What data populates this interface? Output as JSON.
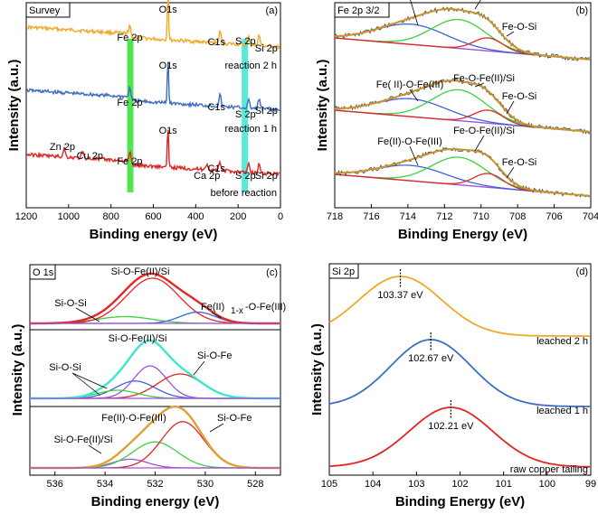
{
  "chart_data": [
    {
      "panel": "a",
      "type": "line",
      "box_label": "Survey",
      "panel_tag": "(a)",
      "xlabel": "Binding energy (eV)",
      "ylabel": "Intensity (a.u.)",
      "xlim": [
        1200,
        0
      ],
      "xticks": [
        1200,
        1000,
        800,
        600,
        400,
        200,
        0
      ],
      "series": [
        {
          "name": "reaction 2 h",
          "color": "#f0a828",
          "peaks": [
            {
              "x": 711,
              "h": 0.9
            },
            {
              "x": 531,
              "h": 3.9
            },
            {
              "x": 285,
              "h": 0.9
            },
            {
              "x": 150,
              "h": 0.6
            },
            {
              "x": 101,
              "h": 0.8
            }
          ]
        },
        {
          "name": "reaction 1 h",
          "color": "#3c6cc4",
          "peaks": [
            {
              "x": 711,
              "h": 1.1
            },
            {
              "x": 531,
              "h": 3.6
            },
            {
              "x": 285,
              "h": 0.9
            },
            {
              "x": 150,
              "h": 0.6
            },
            {
              "x": 101,
              "h": 0.8
            }
          ]
        },
        {
          "name": "before reaction",
          "color": "#e02424",
          "peaks": [
            {
              "x": 1021,
              "h": 0.7
            },
            {
              "x": 934,
              "h": 0.5
            },
            {
              "x": 711,
              "h": 1.0
            },
            {
              "x": 531,
              "h": 3.2
            },
            {
              "x": 347,
              "h": 0.5
            },
            {
              "x": 285,
              "h": 0.6
            },
            {
              "x": 150,
              "h": 0.6
            },
            {
              "x": 101,
              "h": 0.7
            }
          ]
        }
      ],
      "highlight_bands": [
        {
          "x": 711,
          "color": "#33e033",
          "label": "Fe 2p"
        },
        {
          "x": 170,
          "color": "#3ce6d0",
          "label": "S 2p"
        }
      ],
      "annotations": [
        {
          "text": "O1s",
          "series": 0,
          "x": 531
        },
        {
          "text": "C1s",
          "series": 0,
          "x": 285
        },
        {
          "text": "S 2p",
          "series": 0,
          "x": 165
        },
        {
          "text": "Si 2p",
          "series": 0,
          "x": 101
        },
        {
          "text": "Fe 2p",
          "series": 0,
          "x": 711
        },
        {
          "text": "O1s",
          "series": 1,
          "x": 531
        },
        {
          "text": "C1s",
          "series": 1,
          "x": 285
        },
        {
          "text": "S 2p",
          "series": 1,
          "x": 165
        },
        {
          "text": "Si 2p",
          "series": 1,
          "x": 101
        },
        {
          "text": "Fe 2p",
          "series": 1,
          "x": 711
        },
        {
          "text": "O1s",
          "series": 2,
          "x": 531
        },
        {
          "text": "C1s",
          "series": 2,
          "x": 285
        },
        {
          "text": "S 2p",
          "series": 2,
          "x": 165
        },
        {
          "text": "Si 2p",
          "series": 2,
          "x": 101
        },
        {
          "text": "Fe 2p",
          "series": 2,
          "x": 711
        },
        {
          "text": "Zn 2p",
          "series": 2,
          "x": 1021
        },
        {
          "text": "Cu 2p",
          "series": 2,
          "x": 934
        },
        {
          "text": "Ca 2p",
          "series": 2,
          "x": 347
        }
      ]
    },
    {
      "panel": "b",
      "type": "line",
      "box_label": "Fe 2p 3/2",
      "panel_tag": "(b)",
      "xlabel": "Binding Energy (eV)",
      "ylabel": "Intensity (a.u.)",
      "xlim": [
        718,
        704
      ],
      "xticks": [
        718,
        716,
        714,
        712,
        710,
        708,
        706,
        704
      ],
      "components": [
        {
          "name": "Fe(II)-O-Fe(III)",
          "color": "#3c64d8",
          "center": 713.8,
          "width": 1.9
        },
        {
          "name": "Fe-O-Fe(II)/Si",
          "color": "#3cd23c",
          "center": 711.2,
          "width": 1.5
        },
        {
          "name": "Fe-O-Si",
          "color": "#e02828",
          "center": 709.6,
          "width": 0.8
        }
      ],
      "envelope_color": "#c8962e",
      "baseline_color": "#a050dc",
      "spectra": [
        {
          "state": "reaction 2 h",
          "heights": [
            0.7,
            1.0,
            0.45
          ],
          "labels": [
            "Fe(II)-O-Fe(III)",
            "Fe-O-Fe(II)/Si",
            "Fe-O-Si"
          ]
        },
        {
          "state": "reaction 1 h",
          "heights": [
            0.55,
            0.95,
            0.4
          ],
          "labels": [
            "Fe( II)-O-Fe(III)",
            "Fe-O-Fe(II)/Si",
            "Fe-O-Si"
          ]
        },
        {
          "state": "before reaction",
          "heights": [
            0.5,
            0.9,
            0.45
          ],
          "labels": [
            "Fe(II)-O-Fe(III)",
            "Fe-O-Fe(II)/Si",
            "Fe-O-Si"
          ]
        }
      ]
    },
    {
      "panel": "c",
      "type": "line",
      "box_label": "O 1s",
      "panel_tag": "(c)",
      "xlabel": "Binding energy (eV)",
      "ylabel": "Intensity (a.u.)",
      "xlim": [
        537,
        527
      ],
      "xticks": [
        536,
        534,
        532,
        530,
        528
      ],
      "spectra": [
        {
          "state": "reaction 2 h",
          "envelope_color": "#e02828",
          "components": [
            {
              "name": "Si-O-Si",
              "color": "#3cd23c",
              "center": 533.2,
              "width": 1.1,
              "h": 0.15
            },
            {
              "name": "Si-O-Fe(II)/Si",
              "color": "#e02828",
              "center": 532.1,
              "width": 1.05,
              "h": 1.0
            },
            {
              "name": "Fe(II)1-x-O-Fe(III)",
              "color": "#3c64d8",
              "center": 530.3,
              "width": 0.7,
              "h": 0.25
            }
          ],
          "labels": [
            "Si-O-Si",
            "Si-O-Fe(II)/Si",
            "Fe(II)",
            "1-x",
            "-O-Fe(III)"
          ]
        },
        {
          "state": "reaction 1 h",
          "envelope_color": "#3ce6d0",
          "components": [
            {
              "name": "Si-O-Si",
              "color": "#3c64d8",
              "center": 532.8,
              "width": 0.8,
              "h": 0.32
            },
            {
              "name": "Si-O-Fe(II)/Si",
              "color": "#a050dc",
              "center": 532.2,
              "width": 0.65,
              "h": 0.6
            },
            {
              "name": "Si-O-Fe",
              "color": "#e02828",
              "center": 531.0,
              "width": 0.9,
              "h": 0.45
            },
            {
              "name": "Si-O-Si (shoulder)",
              "color": "#3cd23c",
              "center": 533.5,
              "width": 0.8,
              "h": 0.15
            }
          ],
          "labels": [
            "Si-O-Si",
            "Si-O-Fe(II)/Si",
            "Si-O-Fe"
          ]
        },
        {
          "state": "before reaction",
          "envelope_color": "#e0a032",
          "components": [
            {
              "name": "Si-O-Fe(II)/Si",
              "color": "#a050dc",
              "center": 533.0,
              "width": 0.7,
              "h": 0.15
            },
            {
              "name": "Fe(II)-O-Fe(III)",
              "color": "#3cd23c",
              "center": 532.0,
              "width": 0.9,
              "h": 0.45
            },
            {
              "name": "Si-O-Fe",
              "color": "#e02828",
              "center": 530.9,
              "width": 0.85,
              "h": 0.8
            }
          ],
          "labels": [
            "Si-O-Fe(II)/Si",
            "Fe(II)-O-Fe(III)",
            "Si-O-Fe"
          ]
        }
      ]
    },
    {
      "panel": "d",
      "type": "line",
      "box_label": "Si 2p",
      "panel_tag": "(d)",
      "xlabel": "Binding Energy (eV)",
      "ylabel": "Intensity (a.u.)",
      "xlim": [
        105,
        99
      ],
      "xticks": [
        105,
        104,
        103,
        102,
        101,
        100,
        99
      ],
      "series": [
        {
          "name": "leached 2 h",
          "color": "#f0a828",
          "peak": 103.37,
          "peak_label": "103.37 eV"
        },
        {
          "name": "leached 1 h",
          "color": "#3c6cc4",
          "peak": 102.67,
          "peak_label": "102.67 eV"
        },
        {
          "name": "raw copper tailing",
          "color": "#e02424",
          "peak": 102.21,
          "peak_label": "102.21 eV"
        }
      ]
    }
  ]
}
